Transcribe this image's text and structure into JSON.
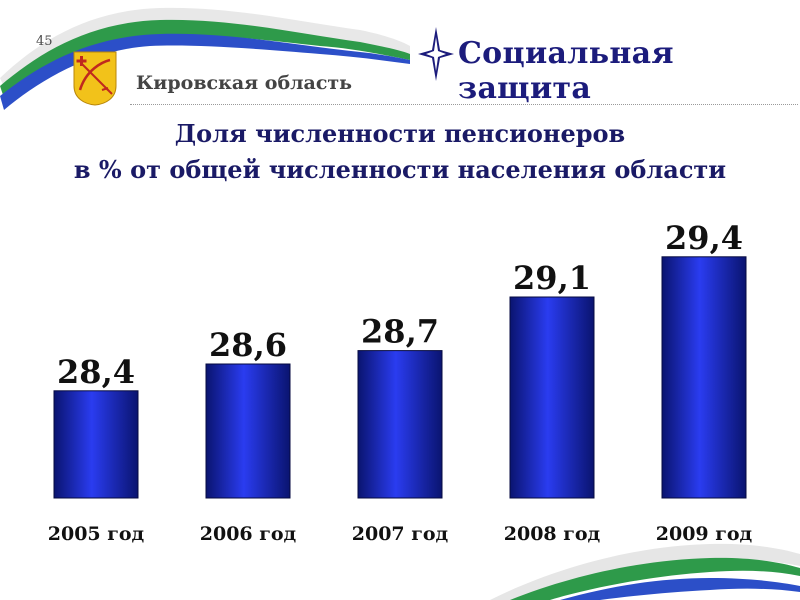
{
  "slide_number": "45",
  "header": {
    "region": "Кировская область",
    "section_title": "Социальная защита"
  },
  "colors": {
    "bar": "#1f2fd6",
    "bar_dark": "#0a1470",
    "title": "#1a1a66",
    "ribbon_green": "#2e9a4a",
    "ribbon_blue": "#2c4fc8"
  },
  "chart_data": {
    "type": "bar",
    "title_line1": "Доля численности пенсионеров",
    "title_line2": "в % от общей численности населения области",
    "categories": [
      "2005 год",
      "2006 год",
      "2007 год",
      "2008 год",
      "2009 год"
    ],
    "values": [
      28.4,
      28.6,
      28.7,
      29.1,
      29.4
    ],
    "value_labels": [
      "28,4",
      "28,6",
      "28,7",
      "29,1",
      "29,4"
    ],
    "xlabel": "",
    "ylabel": "",
    "ylim": [
      27.6,
      29.6
    ],
    "grid": false,
    "legend": "none"
  }
}
